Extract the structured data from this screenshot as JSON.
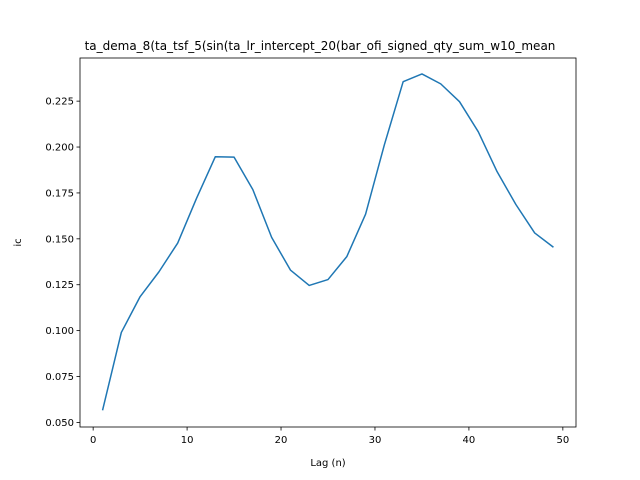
{
  "chart_data": {
    "type": "line",
    "title": "ta_dema_8(ta_tsf_5(sin(ta_lr_intercept_20(bar_ofi_signed_qty_sum_w10_mean",
    "xlabel": "Lag (n)",
    "ylabel": "ic",
    "xlim": [
      -1.4,
      51.4
    ],
    "ylim": [
      0.0475,
      0.2485
    ],
    "grid": false,
    "x_ticks": [
      0,
      10,
      20,
      30,
      40,
      50
    ],
    "y_ticks": [
      0.05,
      0.075,
      0.1,
      0.125,
      0.15,
      0.175,
      0.2,
      0.225
    ],
    "x_tick_labels": [
      "0",
      "10",
      "20",
      "30",
      "40",
      "50"
    ],
    "y_tick_labels": [
      "0.050",
      "0.075",
      "0.100",
      "0.125",
      "0.150",
      "0.175",
      "0.200",
      "0.225"
    ],
    "line_color": "#1f77b4",
    "series": [
      {
        "x": [
          1,
          3,
          5,
          7,
          9,
          11,
          13,
          15,
          17,
          19,
          21,
          23,
          25,
          27,
          29,
          31,
          33,
          35,
          37,
          39,
          41,
          43,
          45,
          47,
          49
        ],
        "values": [
          0.0566,
          0.099,
          0.1185,
          0.132,
          0.1477,
          0.172,
          0.1947,
          0.1945,
          0.1768,
          0.1508,
          0.133,
          0.1246,
          0.1278,
          0.1403,
          0.1634,
          0.2012,
          0.2356,
          0.2398,
          0.2344,
          0.2247,
          0.2083,
          0.1866,
          0.1687,
          0.1532,
          0.1454
        ]
      }
    ]
  }
}
